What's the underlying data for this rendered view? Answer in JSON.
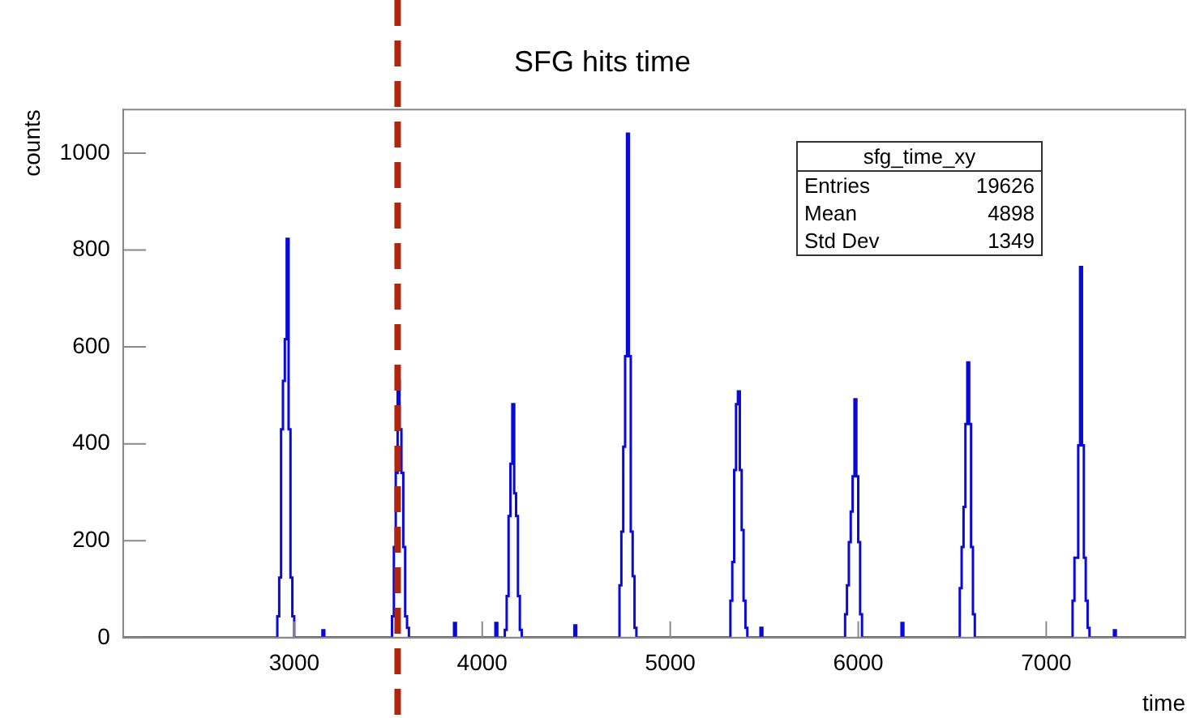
{
  "chart_data": {
    "type": "histogram",
    "title": "SFG hits time",
    "xlabel": "time",
    "ylabel": "counts",
    "bins": [
      2090,
      2910,
      2920,
      2930,
      2940,
      2950,
      2960,
      2970,
      2980,
      2990,
      3000,
      3150,
      3160,
      3520,
      3530,
      3540,
      3550,
      3560,
      3570,
      3580,
      3590,
      3600,
      3610,
      3850,
      3860,
      4070,
      4080,
      4120,
      4130,
      4140,
      4150,
      4160,
      4170,
      4180,
      4190,
      4200,
      4210,
      4490,
      4500,
      4730,
      4740,
      4750,
      4760,
      4770,
      4780,
      4790,
      4800,
      4810,
      4820,
      5320,
      5330,
      5340,
      5350,
      5360,
      5370,
      5380,
      5390,
      5400,
      5410,
      5480,
      5490,
      5930,
      5940,
      5950,
      5960,
      5970,
      5980,
      5990,
      6000,
      6010,
      6020,
      6230,
      6240,
      6540,
      6550,
      6560,
      6570,
      6580,
      6590,
      6600,
      6610,
      6620,
      7140,
      7150,
      7160,
      7170,
      7180,
      7190,
      7200,
      7210,
      7220,
      7230,
      7360,
      7370,
      7740
    ],
    "values": [
      0,
      44,
      124,
      430,
      530,
      616,
      823,
      430,
      124,
      44,
      0,
      15,
      0,
      44,
      187,
      340,
      530,
      430,
      340,
      187,
      44,
      20,
      0,
      30,
      0,
      30,
      0,
      16,
      86,
      251,
      359,
      482,
      298,
      251,
      86,
      16,
      0,
      25,
      0,
      108,
      219,
      394,
      581,
      1040,
      581,
      219,
      127,
      20,
      0,
      76,
      156,
      346,
      482,
      508,
      346,
      222,
      76,
      20,
      0,
      20,
      0,
      48,
      108,
      197,
      260,
      333,
      492,
      333,
      197,
      48,
      0,
      30,
      0,
      102,
      187,
      270,
      441,
      568,
      441,
      187,
      48,
      0,
      76,
      165,
      165,
      397,
      765,
      397,
      165,
      76,
      20,
      0,
      15,
      0
    ],
    "color": "#0a0ad8",
    "xlim": [
      2090,
      7740
    ],
    "xticks": [
      3000,
      4000,
      5000,
      6000,
      7000
    ],
    "ylim": [
      0,
      1090
    ],
    "yticks": [
      0,
      200,
      400,
      600,
      800,
      1000
    ],
    "ref_lines": [
      {
        "axis": "x",
        "value": 3550,
        "color": "#b0260c",
        "line_style": "dashed"
      }
    ],
    "annotations": [
      "sfg_time_xy",
      "Entries 19626",
      "Mean 4898",
      "Std Dev 1349"
    ],
    "grid": false,
    "legend": false
  }
}
